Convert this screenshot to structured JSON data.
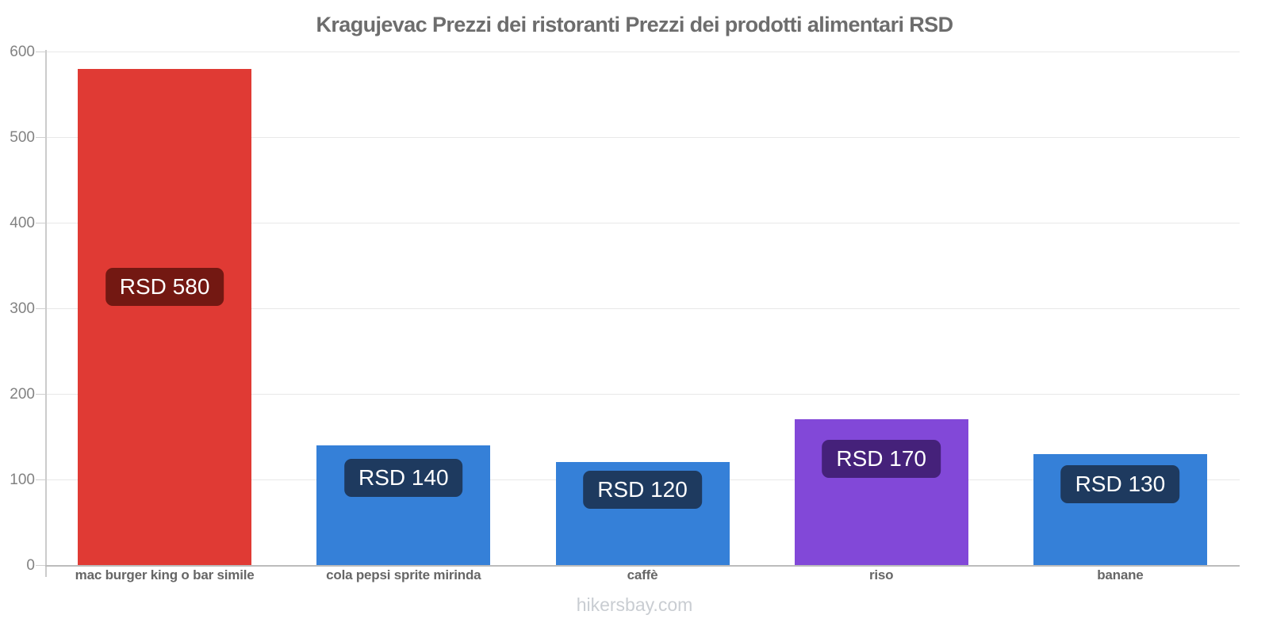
{
  "title": "Kragujevac Prezzi dei ristoranti Prezzi dei prodotti alimentari RSD",
  "footer": "hikersbay.com",
  "chart_data": {
    "type": "bar",
    "title": "Kragujevac Prezzi dei ristoranti Prezzi dei prodotti alimentari RSD",
    "currency": "RSD",
    "categories": [
      "mac burger king o bar simile",
      "cola pepsi sprite mirinda",
      "caffè",
      "riso",
      "banane"
    ],
    "values": [
      580,
      140,
      120,
      170,
      130
    ],
    "data_labels": [
      "RSD 580",
      "RSD 140",
      "RSD 120",
      "RSD 170",
      "RSD 130"
    ],
    "bar_colors": [
      "#e03a34",
      "#3580d8",
      "#3580d8",
      "#8248d8",
      "#3580d8"
    ],
    "label_bg_colors": [
      "#731812",
      "#1e3a5f",
      "#1e3a5f",
      "#45217a",
      "#1e3a5f"
    ],
    "ylim": [
      0,
      600
    ],
    "yticks": [
      0,
      100,
      200,
      300,
      400,
      500,
      600
    ],
    "xlabel": "",
    "ylabel": "",
    "grid": true,
    "legend": "none",
    "watermark": "hikersbay.com"
  }
}
